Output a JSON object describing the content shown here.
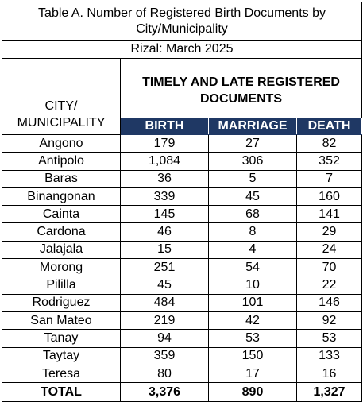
{
  "table": {
    "title": "Table A. Number of Registered Birth Documents by City/Municipality",
    "subtitle": "Rizal:  March 2025",
    "row_header": "CITY/ MUNICIPALITY",
    "group_header": "TIMELY AND LATE REGISTERED DOCUMENTS",
    "columns": [
      "BIRTH",
      "MARRIAGE",
      "DEATH"
    ],
    "rows": [
      [
        "Angono",
        "179",
        "27",
        "82"
      ],
      [
        "Antipolo",
        "1,084",
        "306",
        "352"
      ],
      [
        "Baras",
        "36",
        "5",
        "7"
      ],
      [
        "Binangonan",
        "339",
        "45",
        "160"
      ],
      [
        "Cainta",
        "145",
        "68",
        "141"
      ],
      [
        "Cardona",
        "46",
        "8",
        "29"
      ],
      [
        "Jalajala",
        "15",
        "4",
        "24"
      ],
      [
        "Morong",
        "251",
        "54",
        "70"
      ],
      [
        "Pililla",
        "45",
        "10",
        "22"
      ],
      [
        "Rodriguez",
        "484",
        "101",
        "146"
      ],
      [
        "San Mateo",
        "219",
        "42",
        "92"
      ],
      [
        "Tanay",
        "94",
        "53",
        "53"
      ],
      [
        "Taytay",
        "359",
        "150",
        "133"
      ],
      [
        "Teresa",
        "80",
        "17",
        "16"
      ]
    ],
    "total": [
      "TOTAL",
      "3,376",
      "890",
      "1,327"
    ]
  }
}
